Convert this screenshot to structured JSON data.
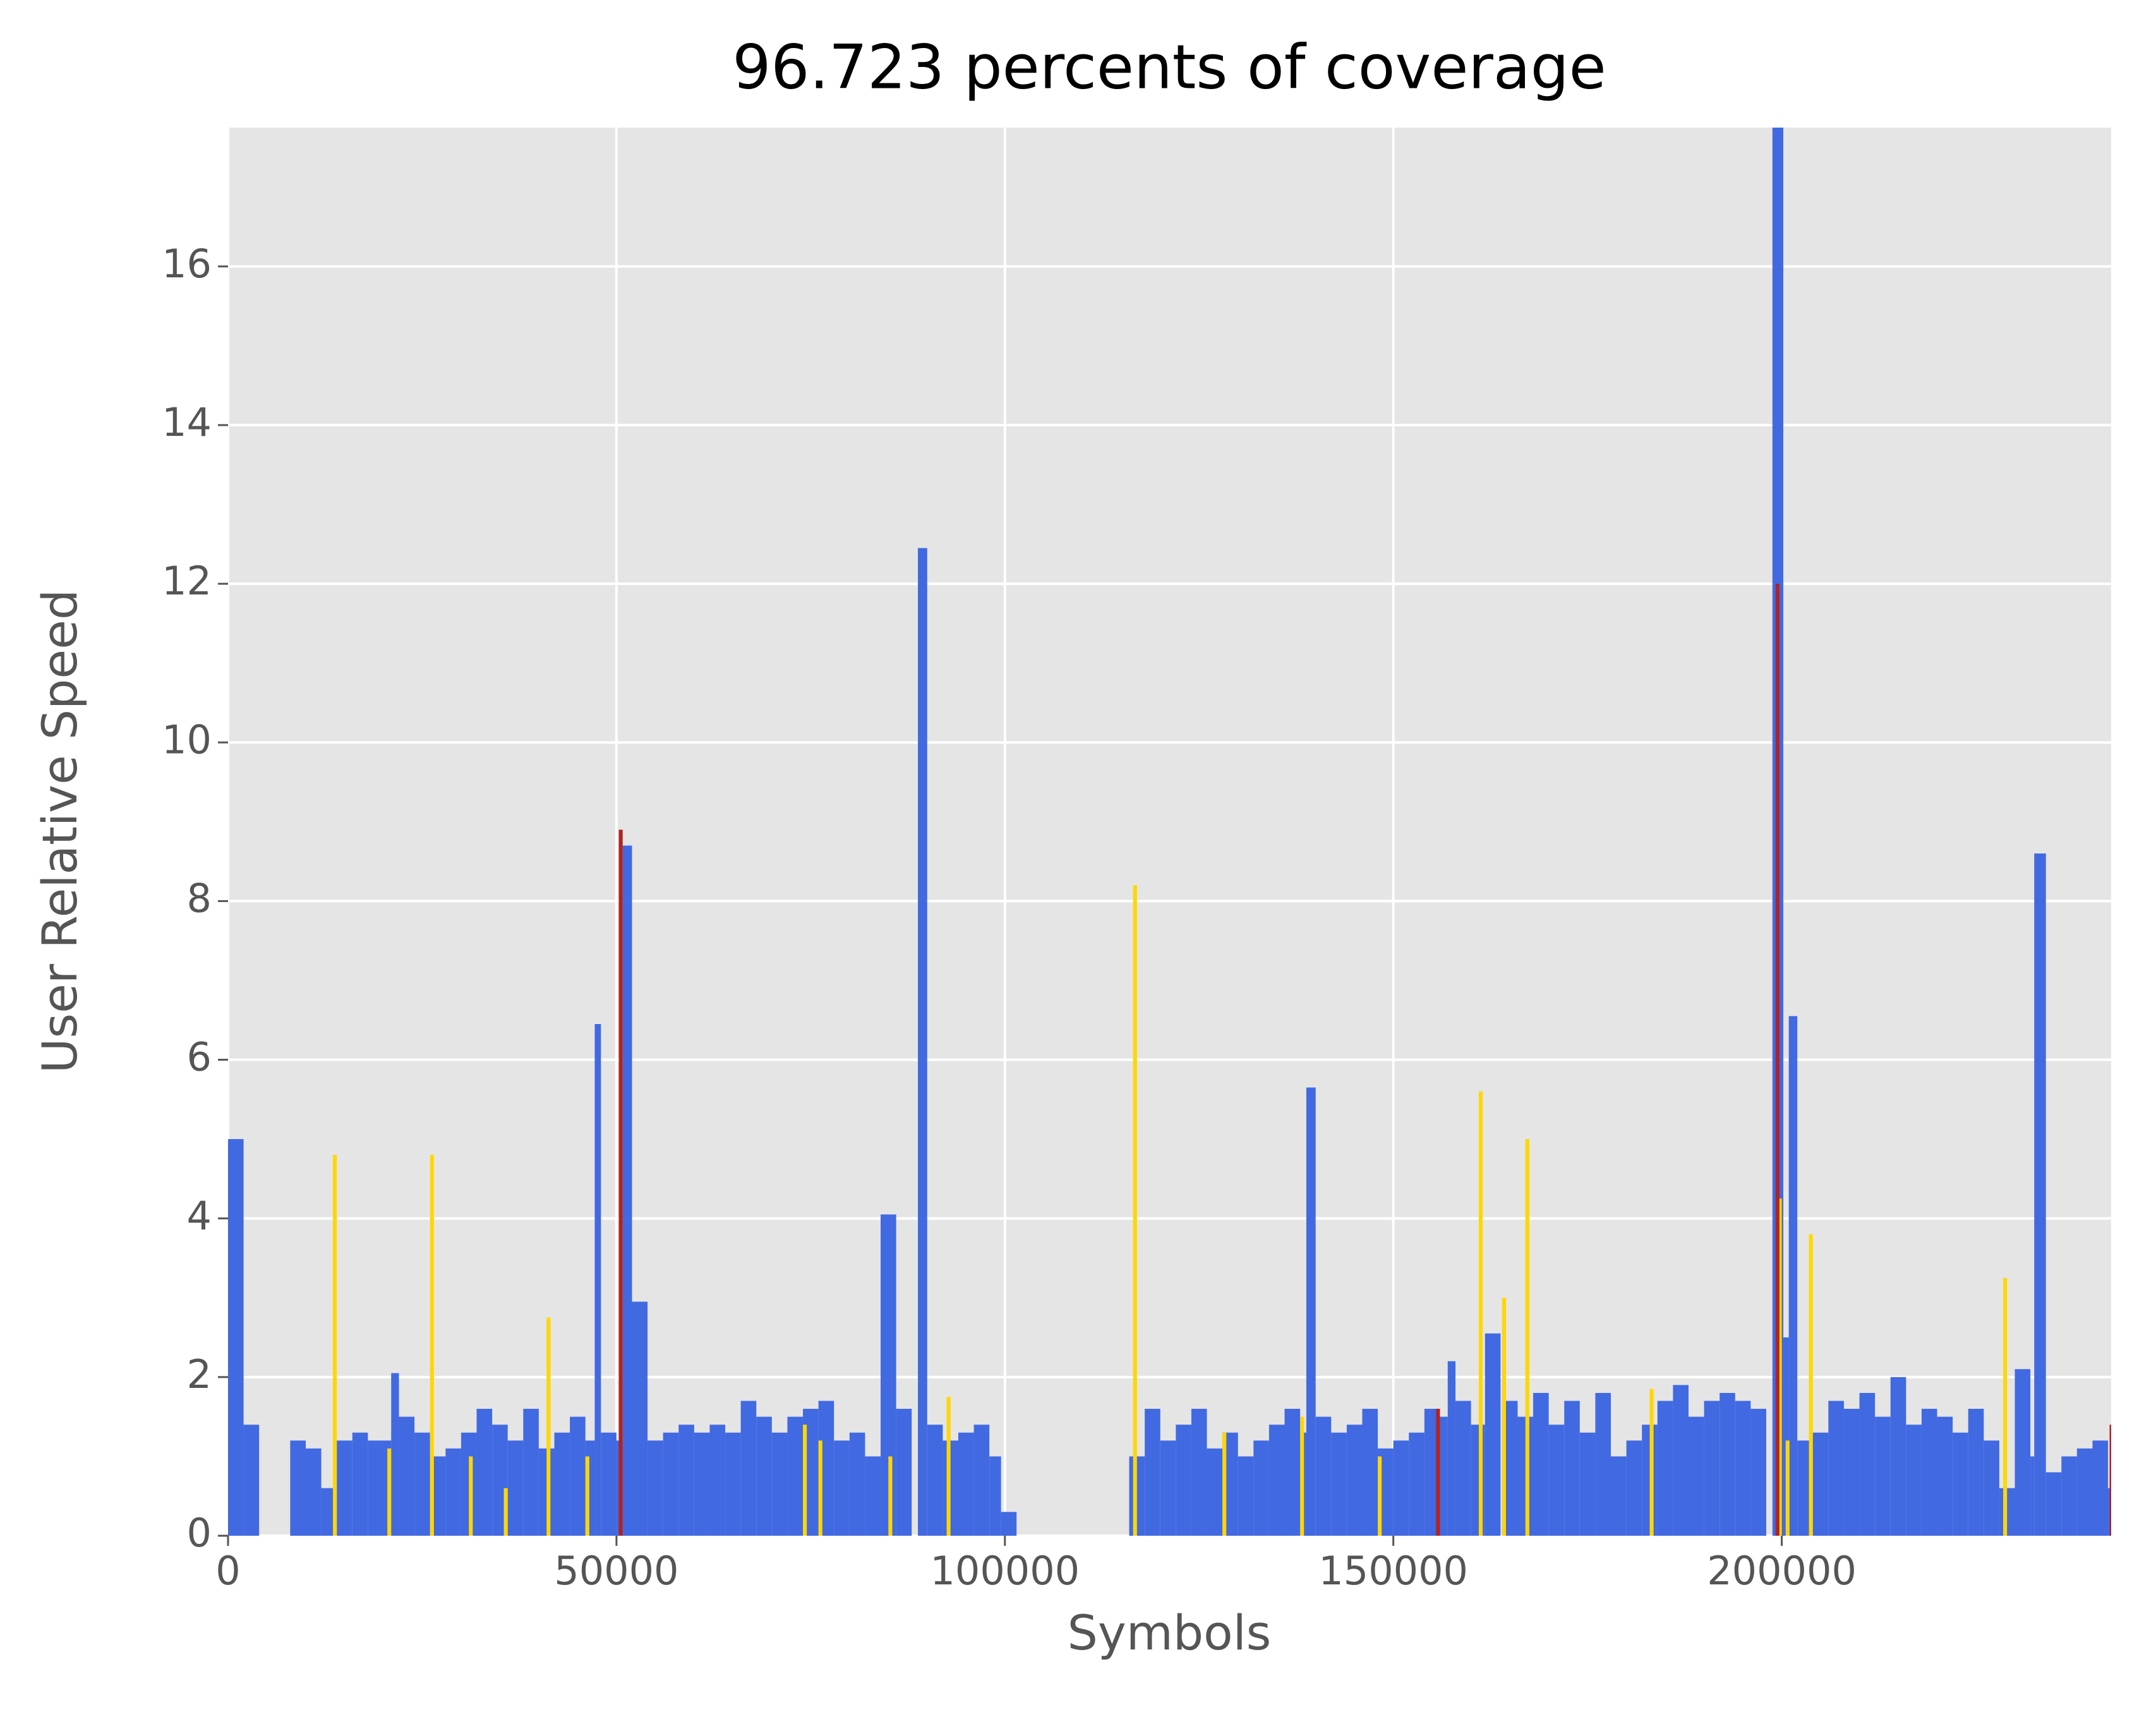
{
  "chart_data": {
    "type": "bar",
    "title": "96.723 percents of coverage",
    "xlabel": "Symbols",
    "ylabel": "User Relative Speed",
    "xlim": [
      0,
      242400
    ],
    "ylim": [
      0,
      17.75
    ],
    "xticks": [
      0,
      50000,
      100000,
      150000,
      200000
    ],
    "yticks": [
      0,
      2,
      4,
      6,
      8,
      10,
      12,
      14,
      16
    ],
    "grid": true,
    "series": [
      {
        "color": "#4169e1",
        "x": [
          0,
          2000,
          8000,
          10000,
          12000,
          14000,
          16000,
          18000,
          20000,
          21000,
          22000,
          24000,
          26000,
          28000,
          30000,
          32000,
          34000,
          36000,
          38000,
          40000,
          42000,
          44000,
          46000,
          47200,
          48000,
          50000,
          50800,
          52000,
          54000,
          56000,
          58000,
          60000,
          62000,
          64000,
          66000,
          68000,
          70000,
          72000,
          74000,
          76000,
          78000,
          80000,
          82000,
          84000,
          86000,
          88800,
          90000,
          92000,
          94000,
          96000,
          98000,
          99500,
          116000,
          118000,
          120000,
          122000,
          124000,
          126000,
          128000,
          130000,
          132000,
          134000,
          136000,
          138000,
          138800,
          140000,
          142000,
          144000,
          146000,
          148000,
          150000,
          152000,
          154000,
          156000,
          157000,
          158000,
          160000,
          161800,
          164000,
          166000,
          168000,
          170000,
          172000,
          174000,
          176000,
          178000,
          180000,
          182000,
          184000,
          186000,
          188000,
          190000,
          192000,
          194000,
          196000,
          198800,
          200200,
          200900,
          202000,
          204000,
          206000,
          208000,
          210000,
          212000,
          214000,
          216000,
          218000,
          220000,
          222000,
          224000,
          226000,
          228000,
          230000,
          232000,
          232500,
          234000,
          236000,
          238000,
          240000,
          242000
        ],
        "values": [
          5.0,
          1.4,
          1.2,
          1.1,
          0.6,
          1.2,
          1.3,
          1.2,
          1.2,
          2.05,
          1.5,
          1.3,
          1.0,
          1.1,
          1.3,
          1.6,
          1.4,
          1.2,
          1.6,
          1.1,
          1.3,
          1.5,
          1.2,
          6.45,
          1.3,
          1.2,
          8.7,
          2.95,
          1.2,
          1.3,
          1.4,
          1.3,
          1.4,
          1.3,
          1.7,
          1.5,
          1.3,
          1.5,
          1.6,
          1.7,
          1.2,
          1.3,
          1.0,
          4.05,
          1.6,
          12.45,
          1.4,
          1.2,
          1.3,
          1.4,
          1.0,
          0.3,
          1.0,
          1.6,
          1.2,
          1.4,
          1.6,
          1.1,
          1.3,
          1.0,
          1.2,
          1.4,
          1.6,
          1.3,
          5.65,
          1.5,
          1.3,
          1.4,
          1.6,
          1.1,
          1.2,
          1.3,
          1.6,
          1.5,
          2.2,
          1.7,
          1.4,
          2.55,
          1.7,
          1.5,
          1.8,
          1.4,
          1.7,
          1.3,
          1.8,
          1.0,
          1.2,
          1.4,
          1.7,
          1.9,
          1.5,
          1.7,
          1.8,
          1.7,
          1.6,
          17.75,
          2.5,
          6.55,
          1.2,
          1.3,
          1.7,
          1.6,
          1.8,
          1.5,
          2.0,
          1.4,
          1.6,
          1.5,
          1.3,
          1.6,
          1.2,
          0.6,
          2.1,
          1.0,
          8.6,
          0.8,
          1.0,
          1.1,
          1.2,
          0.6
        ]
      },
      {
        "color": "#ffd700",
        "x": [
          13500,
          20500,
          26000,
          31000,
          35500,
          41000,
          46000,
          74000,
          76000,
          85000,
          92500,
          116500,
          128000,
          138000,
          148000,
          161000,
          164000,
          167000,
          183000,
          199500,
          200500,
          203500,
          228500
        ],
        "values": [
          4.8,
          1.1,
          4.8,
          1.0,
          0.6,
          2.75,
          1.0,
          1.4,
          1.2,
          1.0,
          1.75,
          8.2,
          1.3,
          1.5,
          1.0,
          5.6,
          3.0,
          5.0,
          1.85,
          4.25,
          1.2,
          3.8,
          3.25
        ]
      },
      {
        "color": "#b22222",
        "x": [
          50300,
          155500,
          199200,
          242200
        ],
        "values": [
          8.9,
          1.6,
          12.0,
          1.4
        ]
      }
    ]
  }
}
